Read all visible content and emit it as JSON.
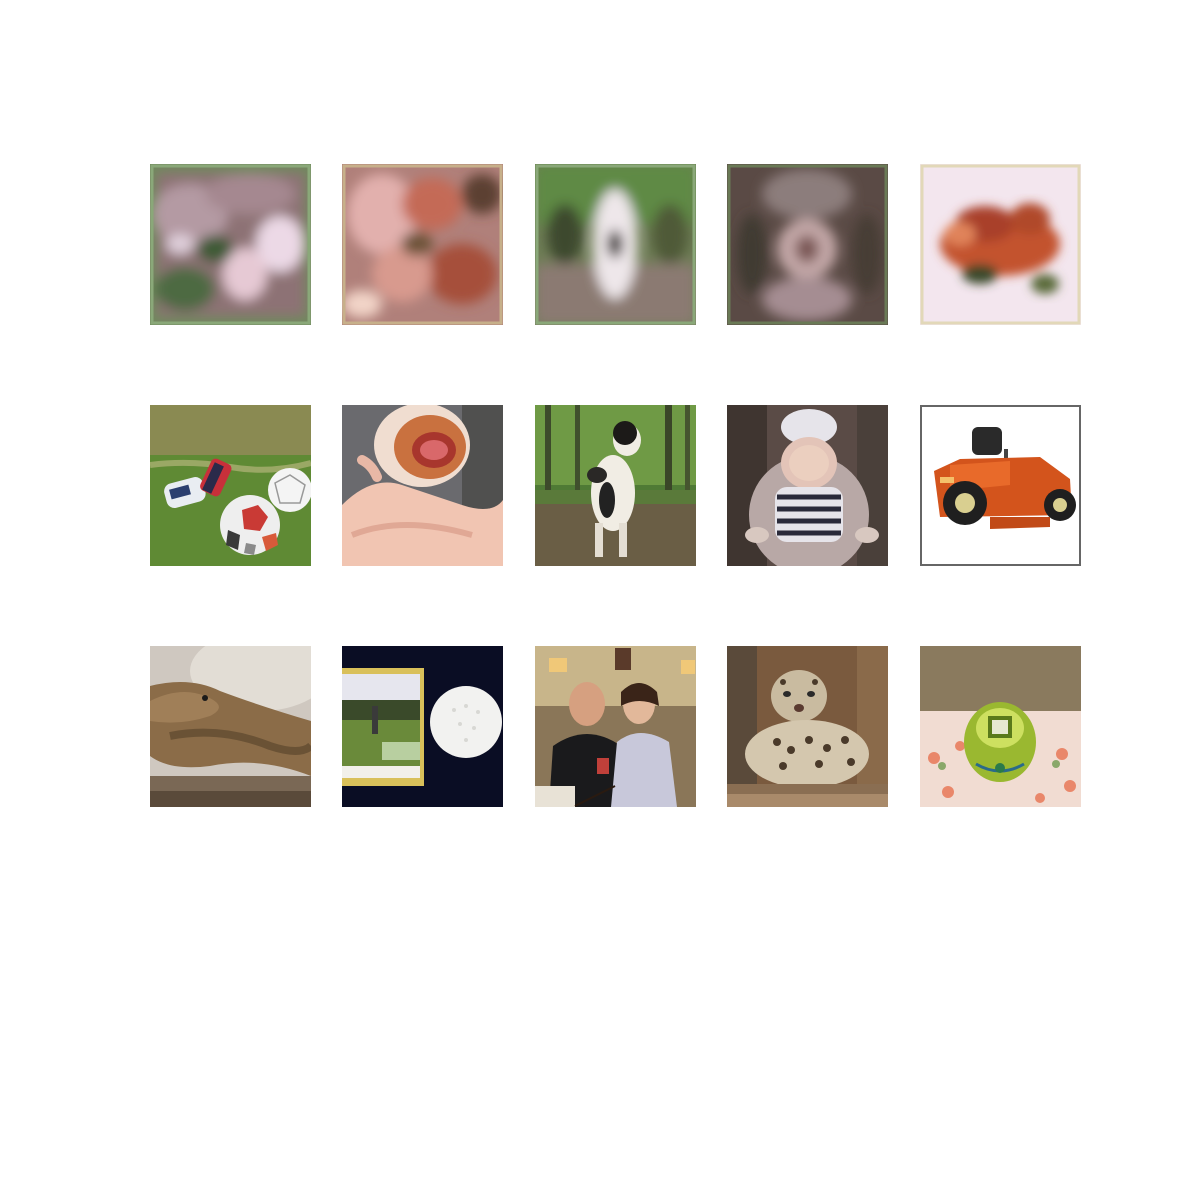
{
  "grid": {
    "rows": 3,
    "columns": 5
  },
  "tiles": [
    {
      "name": "blurry-flowers-thumbnail",
      "row": 1,
      "col": 1
    },
    {
      "name": "blurry-food-thumbnail",
      "row": 1,
      "col": 2
    },
    {
      "name": "blurry-dog-thumbnail",
      "row": 1,
      "col": 3
    },
    {
      "name": "blurry-baby-thumbnail",
      "row": 1,
      "col": 4
    },
    {
      "name": "blurry-tractor-thumbnail",
      "row": 1,
      "col": 5
    },
    {
      "name": "soccer-balls-gloves-photo",
      "row": 2,
      "col": 1
    },
    {
      "name": "hot-dog-bun-in-hand-photo",
      "row": 2,
      "col": 2
    },
    {
      "name": "dog-in-forest-photo",
      "row": 2,
      "col": 3
    },
    {
      "name": "baby-in-bouncer-photo",
      "row": 2,
      "col": 4
    },
    {
      "name": "orange-lawn-tractor-photo",
      "row": 2,
      "col": 5
    },
    {
      "name": "lizard-on-rock-photo",
      "row": 3,
      "col": 1
    },
    {
      "name": "golf-ball-and-package-photo",
      "row": 3,
      "col": 2
    },
    {
      "name": "couple-at-dinner-photo",
      "row": 3,
      "col": 3
    },
    {
      "name": "snow-leopard-photo",
      "row": 3,
      "col": 4
    },
    {
      "name": "green-lid-on-floral-cloth-photo",
      "row": 3,
      "col": 5
    }
  ]
}
